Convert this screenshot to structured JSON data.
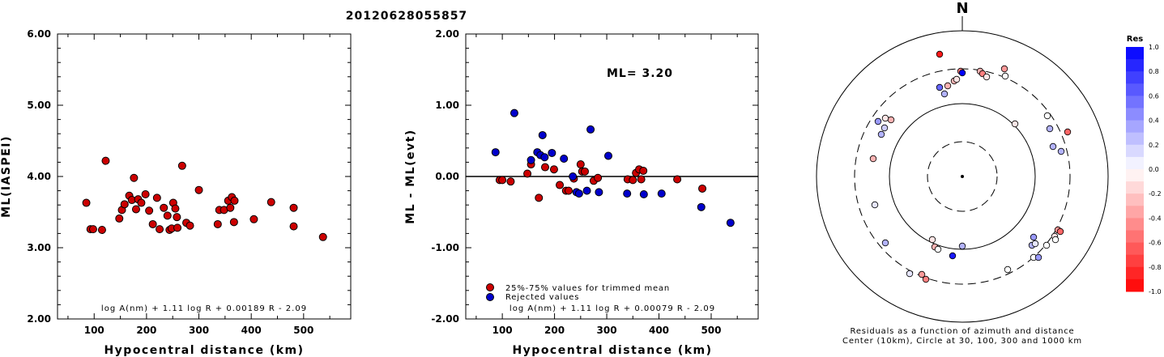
{
  "title": "20120628055857",
  "panel1": {
    "ylabel": "ML(IASPEI)",
    "xlabel": "Hypocentral distance (km)",
    "formula": "log A(nm) + 1.11 log R + 0.00189 R - 2.09",
    "yticks": [
      "6.00",
      "5.00",
      "4.00",
      "3.00",
      "2.00"
    ],
    "xticks": [
      "100",
      "200",
      "300",
      "400",
      "500"
    ]
  },
  "panel2": {
    "ylabel": "ML - ML(evt)",
    "xlabel": "Hypocentral distance (km)",
    "formula": "log A(nm) + 1.11 log R + 0.00079 R - 2.09",
    "ml_text": "ML= 3.20",
    "legend_trimmed": "25%-75% values for trimmed mean",
    "legend_rejected": "Rejected values",
    "yticks": [
      "2.00",
      "1.00",
      "0.00",
      "-1.00",
      "-2.00"
    ],
    "xticks": [
      "100",
      "200",
      "300",
      "400",
      "500"
    ]
  },
  "panel3": {
    "north": "N",
    "caption1": "Residuals as a function of azimuth and distance",
    "caption2": "Center (10km), Circle at 30, 100, 300 and 1000 km",
    "colorbar_title": "Res",
    "colorbar_labels": [
      "1.0",
      "0.8",
      "0.6",
      "0.4",
      "0.2",
      "0.0",
      "-0.2",
      "-0.4",
      "-0.6",
      "-0.8",
      "-1.0"
    ]
  },
  "colors": {
    "trimmed": "#cc0000",
    "rejected": "#0000cc"
  },
  "chart_data": [
    {
      "type": "scatter",
      "xlabel": "Hypocentral distance (km)",
      "ylabel": "ML(IASPEI)",
      "xlim": [
        30,
        590
      ],
      "ylim": [
        2,
        6
      ],
      "points": [
        [
          85,
          3.63
        ],
        [
          93,
          3.26
        ],
        [
          98,
          3.26
        ],
        [
          115,
          3.25
        ],
        [
          122,
          4.22
        ],
        [
          148,
          3.41
        ],
        [
          153,
          3.53
        ],
        [
          158,
          3.61
        ],
        [
          167,
          3.73
        ],
        [
          172,
          3.67
        ],
        [
          176,
          3.98
        ],
        [
          180,
          3.54
        ],
        [
          184,
          3.68
        ],
        [
          190,
          3.63
        ],
        [
          198,
          3.75
        ],
        [
          205,
          3.52
        ],
        [
          212,
          3.33
        ],
        [
          220,
          3.7
        ],
        [
          225,
          3.26
        ],
        [
          233,
          3.56
        ],
        [
          240,
          3.45
        ],
        [
          244,
          3.25
        ],
        [
          248,
          3.27
        ],
        [
          251,
          3.63
        ],
        [
          255,
          3.55
        ],
        [
          259,
          3.28
        ],
        [
          268,
          4.15
        ],
        [
          276,
          3.35
        ],
        [
          283,
          3.31
        ],
        [
          300,
          3.81
        ],
        [
          336,
          3.33
        ],
        [
          339,
          3.53
        ],
        [
          348,
          3.53
        ],
        [
          356,
          3.66
        ],
        [
          363,
          3.71
        ],
        [
          368,
          3.66
        ],
        [
          367,
          3.36
        ],
        [
          405,
          3.4
        ],
        [
          438,
          3.64
        ],
        [
          481,
          3.56
        ],
        [
          481,
          3.3
        ],
        [
          537,
          3.15
        ],
        [
          360,
          3.56
        ],
        [
          258,
          3.43
        ]
      ]
    },
    {
      "type": "scatter",
      "xlabel": "Hypocentral distance (km)",
      "ylabel": "ML - ML(evt)",
      "xlim": [
        30,
        590
      ],
      "ylim": [
        -2,
        2
      ],
      "ml": 3.2,
      "series": [
        {
          "name": "25%-75% values for trimmed mean",
          "points": [
            [
              95,
              -0.05
            ],
            [
              100,
              -0.05
            ],
            [
              116,
              -0.07
            ],
            [
              148,
              0.04
            ],
            [
              155,
              0.17
            ],
            [
              170,
              -0.3
            ],
            [
              182,
              0.13
            ],
            [
              199,
              0.1
            ],
            [
              210,
              -0.12
            ],
            [
              222,
              -0.2
            ],
            [
              237,
              -0.03
            ],
            [
              250,
              0.17
            ],
            [
              253,
              0.07
            ],
            [
              258,
              0.07
            ],
            [
              275,
              -0.06
            ],
            [
              283,
              -0.02
            ],
            [
              340,
              -0.04
            ],
            [
              350,
              -0.05
            ],
            [
              356,
              0.05
            ],
            [
              362,
              0.1
            ],
            [
              366,
              -0.04
            ],
            [
              370,
              0.08
            ],
            [
              435,
              -0.04
            ],
            [
              483,
              -0.17
            ],
            [
              227,
              -0.2
            ]
          ]
        },
        {
          "name": "Rejected values",
          "points": [
            [
              87,
              0.34
            ],
            [
              123,
              0.89
            ],
            [
              155,
              0.23
            ],
            [
              167,
              0.34
            ],
            [
              173,
              0.3
            ],
            [
              177,
              0.58
            ],
            [
              181,
              0.27
            ],
            [
              195,
              0.33
            ],
            [
              218,
              0.25
            ],
            [
              242,
              -0.22
            ],
            [
              247,
              -0.24
            ],
            [
              262,
              -0.2
            ],
            [
              269,
              0.66
            ],
            [
              285,
              -0.22
            ],
            [
              303,
              0.29
            ],
            [
              339,
              -0.24
            ],
            [
              371,
              -0.25
            ],
            [
              405,
              -0.24
            ],
            [
              481,
              -0.43
            ],
            [
              537,
              -0.65
            ],
            [
              235,
              0.0
            ]
          ]
        }
      ]
    },
    {
      "type": "scatter",
      "title": "Residuals as a function of azimuth and distance",
      "points_polar": [
        {
          "x": -28,
          "y": 151,
          "res": -0.9
        },
        {
          "x": -10,
          "y": 118,
          "res": -0.3
        },
        {
          "x": -2,
          "y": 130,
          "res": -0.5
        },
        {
          "x": 0,
          "y": 128,
          "res": 1.0
        },
        {
          "x": -7,
          "y": 120,
          "res": -0.1
        },
        {
          "x": 22,
          "y": 130,
          "res": -0.3
        },
        {
          "x": 25,
          "y": 127,
          "res": -0.5
        },
        {
          "x": 30,
          "y": 123,
          "res": -0.1
        },
        {
          "x": -18,
          "y": 112,
          "res": -0.3
        },
        {
          "x": -22,
          "y": 102,
          "res": 0.3
        },
        {
          "x": -28,
          "y": 110,
          "res": 0.6
        },
        {
          "x": 52,
          "y": 133,
          "res": -0.4
        },
        {
          "x": 53,
          "y": 124,
          "res": 0.0
        },
        {
          "x": -88,
          "y": 70,
          "res": -0.3
        },
        {
          "x": -104,
          "y": 68,
          "res": 0.4
        },
        {
          "x": -96,
          "y": 60,
          "res": 0.2
        },
        {
          "x": -95,
          "y": 72,
          "res": -0.1
        },
        {
          "x": -100,
          "y": 52,
          "res": 0.3
        },
        {
          "x": -110,
          "y": 22,
          "res": -0.3
        },
        {
          "x": 105,
          "y": 75,
          "res": 0.0
        },
        {
          "x": 112,
          "y": 37,
          "res": 0.3
        },
        {
          "x": 108,
          "y": 59,
          "res": 0.3
        },
        {
          "x": 122,
          "y": 31,
          "res": 0.3
        },
        {
          "x": 130,
          "y": 55,
          "res": -0.6
        },
        {
          "x": 65,
          "y": 65,
          "res": -0.1
        },
        {
          "x": -108,
          "y": -35,
          "res": 0.1
        },
        {
          "x": -95,
          "y": -82,
          "res": 0.3
        },
        {
          "x": -37,
          "y": -78,
          "res": -0.1
        },
        {
          "x": -34,
          "y": -87,
          "res": -0.3
        },
        {
          "x": -30,
          "y": -90,
          "res": 0.0
        },
        {
          "x": -65,
          "y": -120,
          "res": 0.1
        },
        {
          "x": -50,
          "y": -121,
          "res": -0.4
        },
        {
          "x": -45,
          "y": -127,
          "res": -0.5
        },
        {
          "x": 0,
          "y": -86,
          "res": 0.3
        },
        {
          "x": -12,
          "y": -98,
          "res": 0.9
        },
        {
          "x": 88,
          "y": -75,
          "res": 0.4
        },
        {
          "x": 86,
          "y": -85,
          "res": 0.3
        },
        {
          "x": 90,
          "y": -83,
          "res": 0.1
        },
        {
          "x": 88,
          "y": -100,
          "res": 0.0
        },
        {
          "x": 104,
          "y": -85,
          "res": 0.0
        },
        {
          "x": 114,
          "y": -74,
          "res": -0.1
        },
        {
          "x": 118,
          "y": -66,
          "res": -0.4
        },
        {
          "x": 121,
          "y": -68,
          "res": -0.6
        },
        {
          "x": 115,
          "y": -78,
          "res": 0.0
        },
        {
          "x": 94,
          "y": -100,
          "res": 0.4
        },
        {
          "x": 56,
          "y": -115,
          "res": 0.0
        }
      ]
    }
  ]
}
